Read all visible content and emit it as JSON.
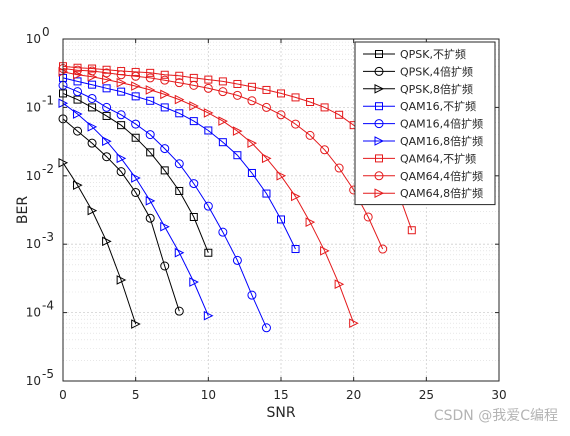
{
  "chart_data": {
    "type": "line",
    "xlabel": "SNR",
    "ylabel": "BER",
    "xscale": "linear",
    "yscale": "log",
    "xlim": [
      0,
      30
    ],
    "ylim": [
      1e-05,
      1
    ],
    "xticks": [
      "0",
      "5",
      "10",
      "15",
      "20",
      "25",
      "30"
    ],
    "yticks": [
      {
        "base": "10",
        "exp": "0",
        "value": 1
      },
      {
        "base": "10",
        "exp": "-1",
        "value": 0.1
      },
      {
        "base": "10",
        "exp": "-2",
        "value": 0.01
      },
      {
        "base": "10",
        "exp": "-3",
        "value": 0.001
      },
      {
        "base": "10",
        "exp": "-4",
        "value": 0.0001
      },
      {
        "base": "10",
        "exp": "-5",
        "value": 1e-05
      }
    ],
    "grid": true,
    "minor_grid": true,
    "legend_position": "top-right",
    "series": [
      {
        "name": "QPSK,不扩频",
        "color": "#000000",
        "marker": "square",
        "x": [
          0,
          1,
          2,
          3,
          4,
          5,
          6,
          7,
          8,
          9,
          10
        ],
        "y": [
          0.16,
          0.13,
          0.1,
          0.075,
          0.055,
          0.036,
          0.022,
          0.012,
          0.006,
          0.0025,
          0.00075
        ]
      },
      {
        "name": "QPSK,4倍扩频",
        "color": "#000000",
        "marker": "circle",
        "x": [
          0,
          1,
          2,
          3,
          4,
          5,
          6,
          7,
          8
        ],
        "y": [
          0.068,
          0.045,
          0.03,
          0.019,
          0.0115,
          0.0057,
          0.0024,
          0.00048,
          0.000105
        ]
      },
      {
        "name": "QPSK,8倍扩频",
        "color": "#000000",
        "marker": "triangle-right",
        "x": [
          0,
          1,
          2,
          3,
          4,
          5
        ],
        "y": [
          0.0155,
          0.0073,
          0.0031,
          0.0011,
          0.0003,
          6.8e-05
        ]
      },
      {
        "name": "QAM16,不扩频",
        "color": "#0000ff",
        "marker": "square",
        "x": [
          0,
          1,
          2,
          3,
          4,
          5,
          6,
          7,
          8,
          9,
          10,
          11,
          12,
          13,
          14,
          15,
          16
        ],
        "y": [
          0.27,
          0.24,
          0.215,
          0.19,
          0.17,
          0.145,
          0.125,
          0.1,
          0.082,
          0.063,
          0.046,
          0.031,
          0.02,
          0.011,
          0.0055,
          0.0023,
          0.00085
        ]
      },
      {
        "name": "QAM16,4倍扩频",
        "color": "#0000ff",
        "marker": "circle",
        "x": [
          0,
          1,
          2,
          3,
          4,
          5,
          6,
          7,
          8,
          9,
          10,
          11,
          12,
          13,
          14
        ],
        "y": [
          0.21,
          0.17,
          0.135,
          0.1,
          0.078,
          0.057,
          0.04,
          0.025,
          0.015,
          0.0077,
          0.0036,
          0.0015,
          0.00058,
          0.00018,
          6e-05
        ]
      },
      {
        "name": "QAM16,8倍扩频",
        "color": "#0000ff",
        "marker": "triangle-right",
        "x": [
          0,
          1,
          2,
          3,
          4,
          5,
          6,
          7,
          8,
          9,
          10
        ],
        "y": [
          0.115,
          0.08,
          0.052,
          0.032,
          0.018,
          0.0093,
          0.0043,
          0.0018,
          0.00075,
          0.00028,
          9e-05
        ]
      },
      {
        "name": "QAM64,不扩频",
        "color": "#e41a1c",
        "marker": "square",
        "x": [
          0,
          1,
          2,
          3,
          4,
          5,
          6,
          7,
          8,
          9,
          10,
          11,
          12,
          13,
          14,
          15,
          16,
          17,
          18,
          19,
          20,
          21,
          22,
          23,
          24
        ],
        "y": [
          0.4,
          0.38,
          0.37,
          0.355,
          0.34,
          0.33,
          0.32,
          0.3,
          0.29,
          0.27,
          0.255,
          0.24,
          0.22,
          0.2,
          0.18,
          0.16,
          0.14,
          0.12,
          0.1,
          0.078,
          0.055,
          0.034,
          0.017,
          0.0062,
          0.0016
        ]
      },
      {
        "name": "QAM64,4倍扩频",
        "color": "#e41a1c",
        "marker": "circle",
        "x": [
          0,
          1,
          2,
          3,
          4,
          5,
          6,
          7,
          8,
          9,
          10,
          11,
          12,
          13,
          14,
          15,
          16,
          17,
          18,
          19,
          20,
          21,
          22
        ],
        "y": [
          0.37,
          0.35,
          0.34,
          0.32,
          0.3,
          0.285,
          0.27,
          0.25,
          0.23,
          0.21,
          0.19,
          0.17,
          0.15,
          0.125,
          0.1,
          0.078,
          0.057,
          0.039,
          0.024,
          0.013,
          0.0062,
          0.0025,
          0.00085
        ]
      },
      {
        "name": "QAM64,8倍扩频",
        "color": "#e41a1c",
        "marker": "triangle-right",
        "x": [
          0,
          1,
          2,
          3,
          4,
          5,
          6,
          7,
          8,
          9,
          10,
          11,
          12,
          13,
          14,
          15,
          16,
          17,
          18,
          19,
          20
        ],
        "y": [
          0.33,
          0.3,
          0.28,
          0.255,
          0.23,
          0.205,
          0.18,
          0.155,
          0.13,
          0.105,
          0.083,
          0.063,
          0.045,
          0.03,
          0.018,
          0.01,
          0.005,
          0.0021,
          0.0008,
          0.00026,
          7e-05
        ]
      }
    ]
  },
  "watermark": "CSDN @我爱C编程"
}
